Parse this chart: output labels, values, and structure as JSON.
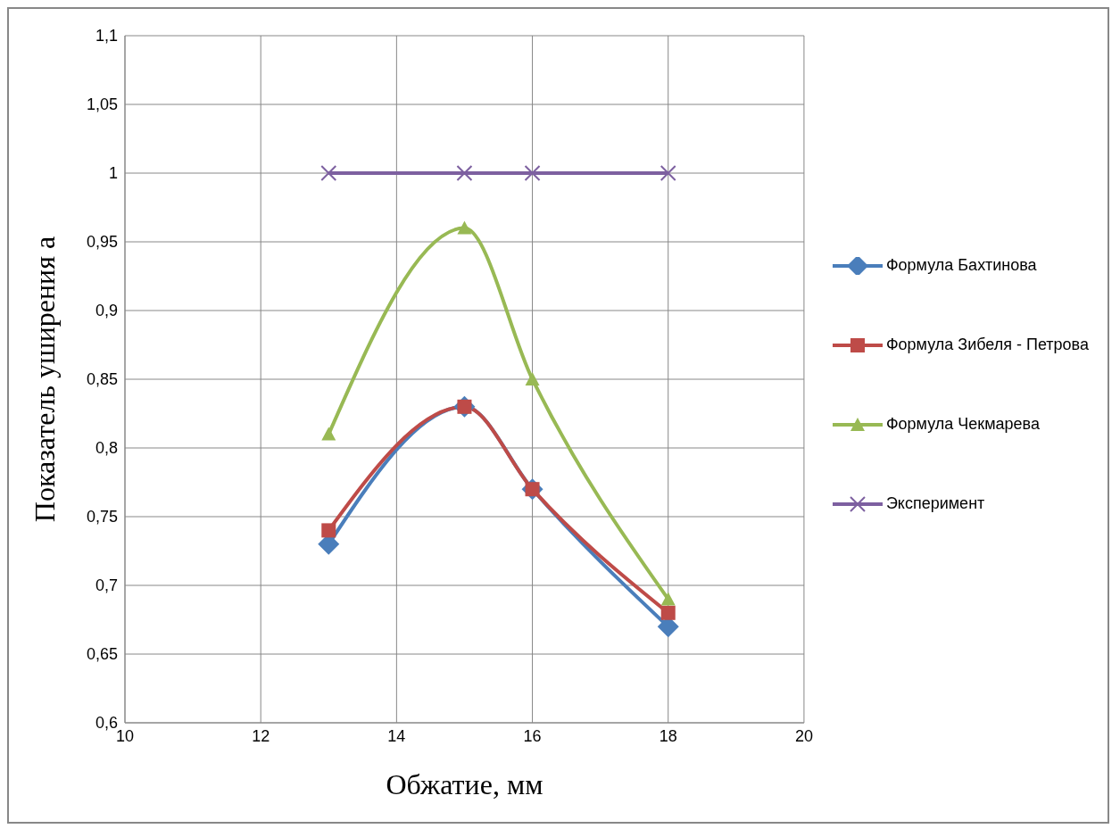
{
  "chart_data": {
    "type": "line",
    "xlabel": "Обжатие, мм",
    "ylabel": "Показатель уширения a",
    "x": [
      13,
      15,
      16,
      18
    ],
    "series": [
      {
        "name": "Формула Бахтинова",
        "color": "#4a7ebb",
        "marker": "diamond",
        "values": [
          0.73,
          0.83,
          0.77,
          0.67
        ]
      },
      {
        "name": "Формула Зибеля - Петрова",
        "color": "#be4b48",
        "marker": "square",
        "values": [
          0.74,
          0.83,
          0.77,
          0.68
        ]
      },
      {
        "name": "Формула Чекмарева",
        "color": "#98b954",
        "marker": "triangle",
        "values": [
          0.81,
          0.96,
          0.85,
          0.69
        ]
      },
      {
        "name": "Эксперимент",
        "color": "#7d60a0",
        "marker": "cross",
        "values": [
          1,
          1,
          1,
          1
        ]
      }
    ],
    "xlim": [
      10,
      20
    ],
    "xticks": [
      10,
      12,
      14,
      16,
      18,
      20
    ],
    "ylim": [
      0.6,
      1.1
    ],
    "yticks": [
      {
        "value": 0.6,
        "label": "0,6"
      },
      {
        "value": 0.65,
        "label": "0,65"
      },
      {
        "value": 0.7,
        "label": "0,7"
      },
      {
        "value": 0.75,
        "label": "0,75"
      },
      {
        "value": 0.8,
        "label": "0,8"
      },
      {
        "value": 0.85,
        "label": "0,85"
      },
      {
        "value": 0.9,
        "label": "0,9"
      },
      {
        "value": 0.95,
        "label": "0,95"
      },
      {
        "value": 1,
        "label": "1"
      },
      {
        "value": 1.05,
        "label": "1,05"
      },
      {
        "value": 1.1,
        "label": "1,1"
      }
    ],
    "grid": true,
    "legend": "right",
    "line_style": "solid"
  }
}
